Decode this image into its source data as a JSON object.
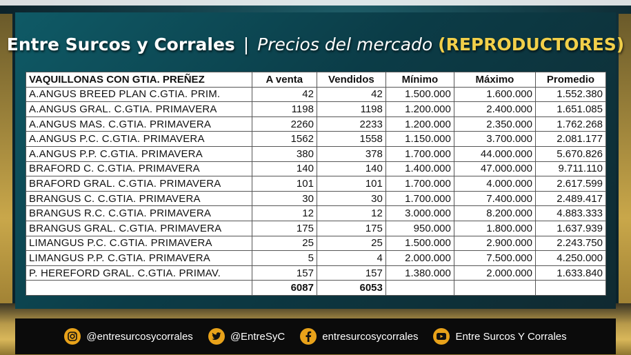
{
  "title": {
    "brand": "Entre Surcos y Corrales",
    "separator": "|",
    "subtitle": "Precios del mercado",
    "accent": "(REPRODUCTORES)"
  },
  "table": {
    "headers": [
      "VAQUILLONAS CON GTIA. PREÑEZ",
      "A venta",
      "Vendidos",
      "Mínimo",
      "Máximo",
      "Promedio"
    ],
    "rows": [
      [
        "A.ANGUS BREED PLAN C.GTIA. PRIM.",
        "42",
        "42",
        "1.500.000",
        "1.600.000",
        "1.552.380"
      ],
      [
        "A.ANGUS GRAL. C.GTIA. PRIMAVERA",
        "1198",
        "1198",
        "1.200.000",
        "2.400.000",
        "1.651.085"
      ],
      [
        "A.ANGUS MAS. C.GTIA. PRIMAVERA",
        "2260",
        "2233",
        "1.200.000",
        "2.350.000",
        "1.762.268"
      ],
      [
        "A.ANGUS P.C. C.GTIA. PRIMAVERA",
        "1562",
        "1558",
        "1.150.000",
        "3.700.000",
        "2.081.177"
      ],
      [
        "A.ANGUS P.P. C.GTIA. PRIMAVERA",
        "380",
        "378",
        "1.700.000",
        "44.000.000",
        "5.670.826"
      ],
      [
        "BRAFORD C. C.GTIA. PRIMAVERA",
        "140",
        "140",
        "1.400.000",
        "47.000.000",
        "9.711.110"
      ],
      [
        "BRAFORD GRAL. C.GTIA. PRIMAVERA",
        "101",
        "101",
        "1.700.000",
        "4.000.000",
        "2.617.599"
      ],
      [
        "BRANGUS C. C.GTIA. PRIMAVERA",
        "30",
        "30",
        "1.700.000",
        "7.400.000",
        "2.489.417"
      ],
      [
        "BRANGUS R.C. C.GTIA. PRIMAVERA",
        "12",
        "12",
        "3.000.000",
        "8.200.000",
        "4.883.333"
      ],
      [
        "BRANGUS GRAL. C.GTIA. PRIMAVERA",
        "175",
        "175",
        "950.000",
        "1.800.000",
        "1.637.939"
      ],
      [
        "LIMANGUS P.C. C.GTIA. PRIMAVERA",
        "25",
        "25",
        "1.500.000",
        "2.900.000",
        "2.243.750"
      ],
      [
        "LIMANGUS P.P. C.GTIA. PRIMAVERA",
        "5",
        "4",
        "2.000.000",
        "7.500.000",
        "4.250.000"
      ],
      [
        "P. HEREFORD GRAL. C.GTIA. PRIMAV.",
        "157",
        "157",
        "1.380.000",
        "2.000.000",
        "1.633.840"
      ]
    ],
    "totals": [
      "",
      "6087",
      "6053",
      "",
      "",
      ""
    ]
  },
  "footer": {
    "instagram": "@entresurcosycorrales",
    "twitter": "@EntreSyC",
    "facebook": "entresurcosycorrales",
    "youtube": "Entre Surcos Y Corrales",
    "icons": [
      "instagram-icon",
      "twitter-icon",
      "facebook-icon",
      "youtube-icon"
    ],
    "icon_color": "#e8a21a"
  }
}
